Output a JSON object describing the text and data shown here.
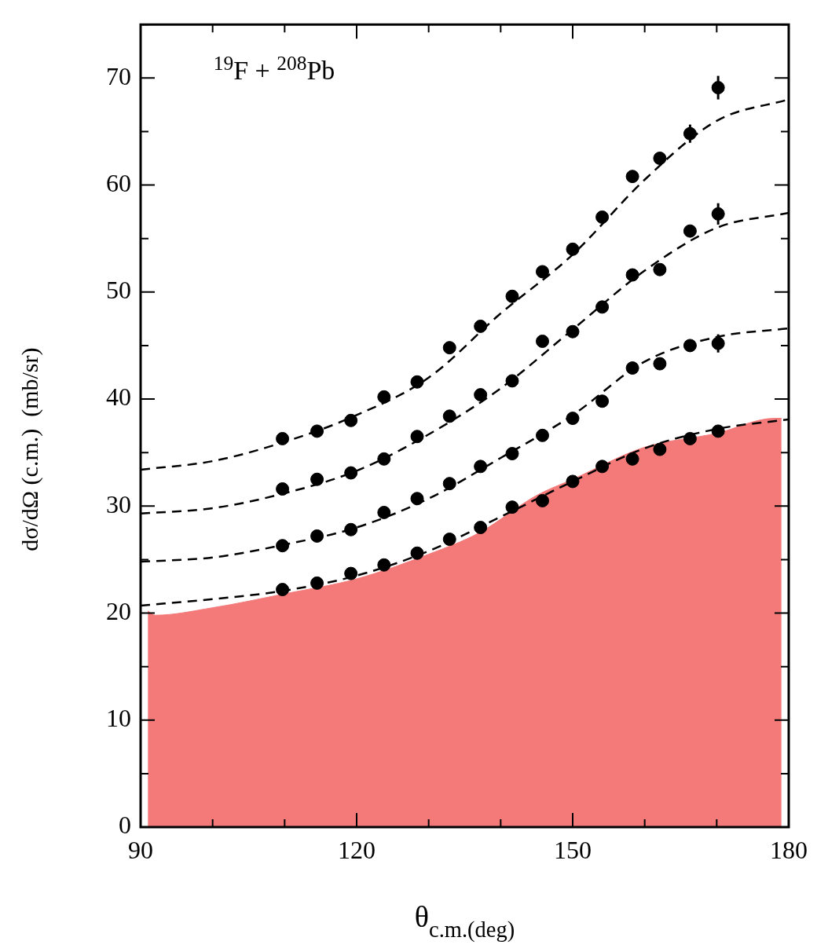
{
  "chart_data": {
    "type": "scatter",
    "xlabel": "θ$_{c.m.(deg)}$",
    "ylabel": "dσ/dΩ (c.m.)  (mb/sr)",
    "annotations": [
      "$^{19}$F + $^{208}$Pb"
    ],
    "xlim": [
      90,
      180
    ],
    "ylim": [
      0,
      75
    ],
    "xticks": [
      90,
      {
        "value": 100,
        "label": null
      },
      {
        "value": 110,
        "label": null
      },
      120,
      {
        "value": 130,
        "label": null
      },
      {
        "value": 140,
        "label": null
      },
      150,
      {
        "value": 160,
        "label": null
      },
      {
        "value": 170,
        "label": null
      },
      180
    ],
    "yticks": [
      0,
      {
        "value": 5,
        "label": null
      },
      10,
      {
        "value": 15,
        "label": null
      },
      20,
      {
        "value": 25,
        "label": null
      },
      30,
      {
        "value": 35,
        "label": null
      },
      40,
      {
        "value": 45,
        "label": null
      },
      50,
      {
        "value": 55,
        "label": null
      },
      60,
      {
        "value": 65,
        "label": null
      },
      70,
      {
        "value": 75,
        "label": null
      }
    ],
    "grid": false,
    "legend": false,
    "x": [
      109.7,
      114.5,
      119.2,
      123.8,
      128.4,
      132.9,
      137.2,
      141.6,
      145.8,
      150.0,
      154.1,
      158.3,
      162.1,
      166.3,
      170.2
    ],
    "series": [
      {
        "type": "area",
        "color": "#f47a7a",
        "x": [
          91,
          92,
          100,
          110,
          120,
          130,
          137,
          145,
          150,
          160,
          170,
          178,
          179
        ],
        "values": [
          20.2,
          19.8,
          20.5,
          21.8,
          23.2,
          25.5,
          27.5,
          31,
          32.5,
          35.5,
          36.8,
          38.2,
          38.2
        ]
      },
      {
        "type": "line",
        "color": "#000000",
        "line_style": "dashed",
        "marker": "none",
        "x": [
          90,
          100,
          110,
          120,
          130,
          140,
          150,
          160,
          170,
          180
        ],
        "values": [
          33.4,
          34.2,
          36,
          38.5,
          42,
          48,
          53.5,
          60.5,
          66,
          68
        ]
      },
      {
        "type": "line",
        "color": "#000000",
        "line_style": "dashed",
        "marker": "none",
        "x": [
          90,
          100,
          110,
          120,
          130,
          140,
          150,
          160,
          170,
          180
        ],
        "values": [
          29.3,
          29.8,
          31.2,
          33.3,
          36.7,
          41,
          46.5,
          52,
          56,
          57.4
        ]
      },
      {
        "type": "line",
        "color": "#000000",
        "line_style": "dashed",
        "marker": "none",
        "x": [
          90,
          100,
          110,
          120,
          130,
          140,
          150,
          160,
          170,
          180
        ],
        "values": [
          24.8,
          25.2,
          26.4,
          28,
          30.7,
          34.5,
          38.5,
          43.5,
          45.8,
          46.6
        ]
      },
      {
        "type": "line",
        "color": "#000000",
        "line_style": "dashed",
        "marker": "none",
        "x": [
          90,
          100,
          110,
          120,
          130,
          140,
          150,
          160,
          170,
          180
        ],
        "values": [
          20.7,
          21.3,
          22.1,
          23.5,
          25.8,
          29,
          32.3,
          35.4,
          37.2,
          38.1
        ]
      },
      {
        "type": "scatter",
        "color": "#000000",
        "marker": "circle",
        "values": [
          36.3,
          37.0,
          38.0,
          40.2,
          41.6,
          44.8,
          46.8,
          49.6,
          51.9,
          54.0,
          57.0,
          60.8,
          62.5,
          64.8,
          69.1
        ],
        "errors": [
          null,
          null,
          null,
          null,
          null,
          null,
          null,
          null,
          null,
          null,
          null,
          null,
          null,
          0.85,
          1.1
        ]
      },
      {
        "type": "scatter",
        "color": "#000000",
        "marker": "circle",
        "values": [
          31.6,
          32.5,
          33.1,
          34.4,
          36.5,
          38.4,
          40.4,
          41.7,
          45.4,
          46.3,
          48.6,
          51.6,
          52.1,
          55.7,
          57.3
        ],
        "errors": [
          null,
          null,
          null,
          null,
          null,
          null,
          null,
          null,
          null,
          null,
          null,
          null,
          null,
          null,
          1.0
        ]
      },
      {
        "type": "scatter",
        "color": "#000000",
        "marker": "circle",
        "values": [
          26.3,
          27.2,
          27.8,
          29.4,
          30.7,
          32.1,
          33.7,
          34.9,
          36.6,
          38.2,
          39.8,
          42.9,
          43.3,
          45.0,
          45.2
        ],
        "errors": [
          null,
          null,
          null,
          null,
          null,
          null,
          null,
          null,
          null,
          null,
          null,
          null,
          null,
          null,
          0.85
        ]
      },
      {
        "type": "scatter",
        "color": "#000000",
        "marker": "circle",
        "values": [
          22.2,
          22.8,
          23.7,
          24.5,
          25.6,
          26.9,
          28.0,
          29.9,
          30.5,
          32.3,
          33.7,
          34.4,
          35.3,
          36.3,
          37.0
        ]
      }
    ]
  }
}
